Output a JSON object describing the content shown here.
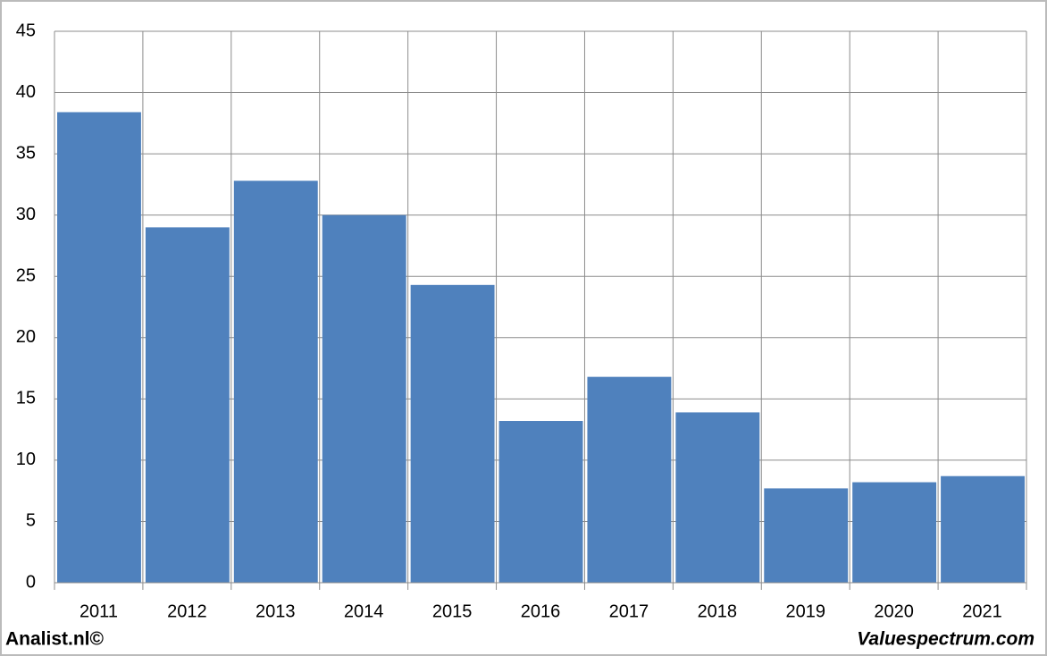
{
  "chart_data": {
    "type": "bar",
    "categories": [
      "2011",
      "2012",
      "2013",
      "2014",
      "2015",
      "2016",
      "2017",
      "2018",
      "2019",
      "2020",
      "2021"
    ],
    "values": [
      38.4,
      29.0,
      32.8,
      30.0,
      24.3,
      13.2,
      16.8,
      13.9,
      7.7,
      8.2,
      8.7
    ],
    "color": "#4f81bd",
    "ylim": [
      0,
      45
    ],
    "yticks": [
      0,
      5,
      10,
      15,
      20,
      25,
      30,
      35,
      40,
      45
    ],
    "grid": true,
    "source_left": "Analist.nl©",
    "source_right": "Valuespectrum.com"
  }
}
